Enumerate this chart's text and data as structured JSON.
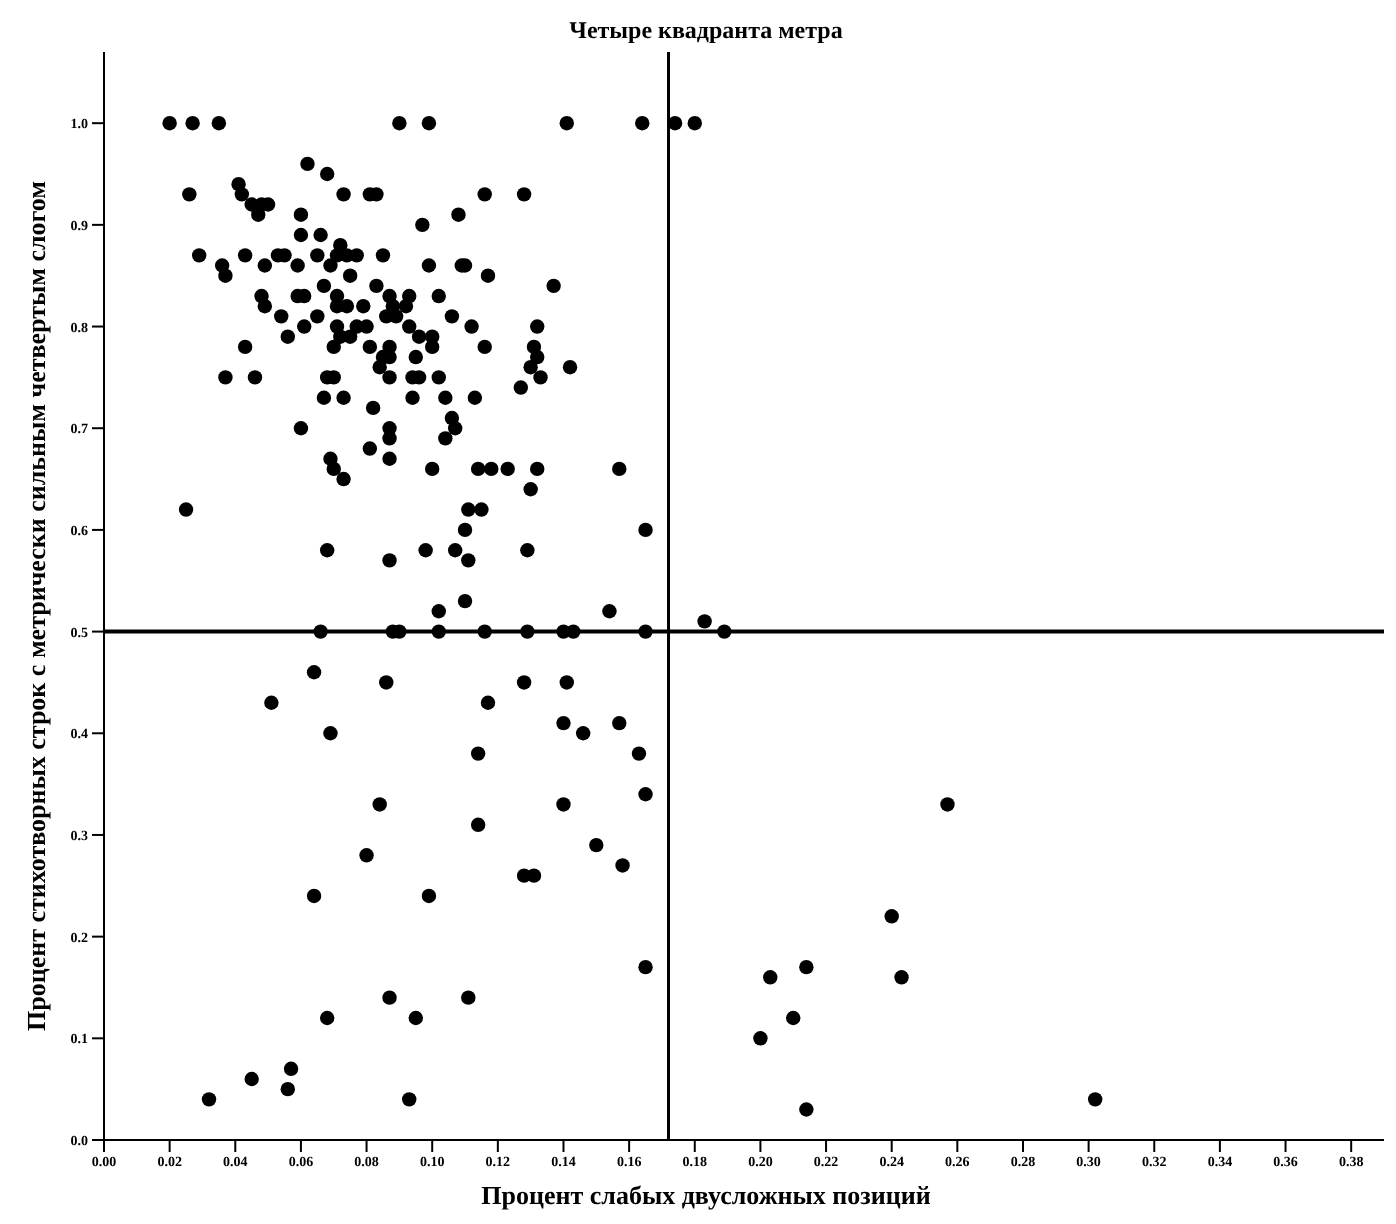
{
  "chart_data": {
    "type": "scatter",
    "title": "Четыре квадранта метра",
    "xlabel": "Процент слабых двусложных позиций",
    "ylabel": "Процент стихотворных строк с метрически сильным четвертым слогом",
    "x": [
      0.02,
      0.027,
      0.035,
      0.09,
      0.099,
      0.141,
      0.164,
      0.174,
      0.18,
      0.062,
      0.041,
      0.068,
      0.081,
      0.083,
      0.073,
      0.026,
      0.042,
      0.045,
      0.048,
      0.05,
      0.047,
      0.06,
      0.066,
      0.06,
      0.097,
      0.108,
      0.116,
      0.128,
      0.029,
      0.036,
      0.037,
      0.043,
      0.049,
      0.053,
      0.055,
      0.059,
      0.065,
      0.071,
      0.072,
      0.074,
      0.077,
      0.069,
      0.075,
      0.085,
      0.099,
      0.109,
      0.11,
      0.117,
      0.137,
      0.048,
      0.049,
      0.054,
      0.059,
      0.061,
      0.067,
      0.065,
      0.071,
      0.071,
      0.074,
      0.056,
      0.061,
      0.071,
      0.072,
      0.07,
      0.075,
      0.077,
      0.08,
      0.079,
      0.083,
      0.087,
      0.088,
      0.089,
      0.093,
      0.092,
      0.086,
      0.093,
      0.096,
      0.1,
      0.1,
      0.102,
      0.106,
      0.112,
      0.116,
      0.132,
      0.131,
      0.132,
      0.13,
      0.133,
      0.142,
      0.043,
      0.081,
      0.085,
      0.087,
      0.087,
      0.084,
      0.095,
      0.096,
      0.094,
      0.087,
      0.102,
      0.068,
      0.07,
      0.037,
      0.046,
      0.067,
      0.073,
      0.082,
      0.094,
      0.104,
      0.106,
      0.113,
      0.127,
      0.06,
      0.081,
      0.087,
      0.087,
      0.087,
      0.069,
      0.07,
      0.073,
      0.1,
      0.104,
      0.107,
      0.114,
      0.118,
      0.123,
      0.132,
      0.13,
      0.115,
      0.111,
      0.11,
      0.111,
      0.107,
      0.098,
      0.087,
      0.068,
      0.129,
      0.025,
      0.157,
      0.165,
      0.102,
      0.11,
      0.154,
      0.066,
      0.088,
      0.09,
      0.102,
      0.116,
      0.129,
      0.14,
      0.143,
      0.165,
      0.183,
      0.189,
      0.064,
      0.051,
      0.086,
      0.069,
      0.117,
      0.128,
      0.141,
      0.14,
      0.146,
      0.157,
      0.163,
      0.114,
      0.084,
      0.14,
      0.165,
      0.08,
      0.114,
      0.15,
      0.158,
      0.128,
      0.131,
      0.064,
      0.099,
      0.165,
      0.087,
      0.111,
      0.068,
      0.095,
      0.057,
      0.056,
      0.045,
      0.032,
      0.093,
      0.257,
      0.24,
      0.243,
      0.203,
      0.214,
      0.21,
      0.2,
      0.214,
      0.302
    ],
    "values": [
      1.0,
      1.0,
      1.0,
      1.0,
      1.0,
      1.0,
      1.0,
      1.0,
      1.0,
      0.96,
      0.94,
      0.95,
      0.93,
      0.93,
      0.93,
      0.93,
      0.93,
      0.92,
      0.92,
      0.92,
      0.91,
      0.91,
      0.89,
      0.89,
      0.9,
      0.91,
      0.93,
      0.93,
      0.87,
      0.86,
      0.85,
      0.87,
      0.86,
      0.87,
      0.87,
      0.86,
      0.87,
      0.87,
      0.88,
      0.87,
      0.87,
      0.86,
      0.85,
      0.87,
      0.86,
      0.86,
      0.86,
      0.85,
      0.84,
      0.83,
      0.82,
      0.81,
      0.83,
      0.83,
      0.84,
      0.81,
      0.83,
      0.82,
      0.82,
      0.79,
      0.8,
      0.8,
      0.79,
      0.78,
      0.79,
      0.8,
      0.8,
      0.82,
      0.84,
      0.83,
      0.82,
      0.81,
      0.83,
      0.82,
      0.81,
      0.8,
      0.79,
      0.79,
      0.78,
      0.83,
      0.81,
      0.8,
      0.78,
      0.8,
      0.78,
      0.77,
      0.76,
      0.75,
      0.76,
      0.78,
      0.78,
      0.77,
      0.77,
      0.78,
      0.76,
      0.77,
      0.75,
      0.75,
      0.75,
      0.75,
      0.75,
      0.75,
      0.75,
      0.75,
      0.73,
      0.73,
      0.72,
      0.73,
      0.73,
      0.71,
      0.73,
      0.74,
      0.7,
      0.68,
      0.7,
      0.69,
      0.67,
      0.67,
      0.66,
      0.65,
      0.66,
      0.69,
      0.7,
      0.66,
      0.66,
      0.66,
      0.66,
      0.64,
      0.62,
      0.62,
      0.6,
      0.57,
      0.58,
      0.58,
      0.57,
      0.58,
      0.58,
      0.62,
      0.66,
      0.6,
      0.52,
      0.53,
      0.52,
      0.5,
      0.5,
      0.5,
      0.5,
      0.5,
      0.5,
      0.5,
      0.5,
      0.5,
      0.51,
      0.5,
      0.46,
      0.43,
      0.45,
      0.4,
      0.43,
      0.45,
      0.45,
      0.41,
      0.4,
      0.41,
      0.38,
      0.38,
      0.33,
      0.33,
      0.34,
      0.28,
      0.31,
      0.29,
      0.27,
      0.26,
      0.26,
      0.24,
      0.24,
      0.17,
      0.14,
      0.14,
      0.12,
      0.12,
      0.07,
      0.05,
      0.06,
      0.04,
      0.04,
      0.33,
      0.22,
      0.16,
      0.16,
      0.17,
      0.12,
      0.1,
      0.03,
      0.04
    ],
    "color": "#000000",
    "marker": "circle",
    "xlim": [
      0,
      0.39
    ],
    "ylim": [
      0,
      1.07
    ],
    "xticks": [
      {
        "value": 0,
        "label": "0.00"
      },
      {
        "value": 0.02,
        "label": "0.02"
      },
      {
        "value": 0.04,
        "label": "0.04"
      },
      {
        "value": 0.06,
        "label": "0.06"
      },
      {
        "value": 0.08,
        "label": "0.08"
      },
      {
        "value": 0.1,
        "label": "0.10"
      },
      {
        "value": 0.12,
        "label": "0.12"
      },
      {
        "value": 0.14,
        "label": "0.14"
      },
      {
        "value": 0.16,
        "label": "0.16"
      },
      {
        "value": 0.18,
        "label": "0.18"
      },
      {
        "value": 0.2,
        "label": "0.20"
      },
      {
        "value": 0.22,
        "label": "0.22"
      },
      {
        "value": 0.24,
        "label": "0.24"
      },
      {
        "value": 0.26,
        "label": "0.26"
      },
      {
        "value": 0.28,
        "label": "0.28"
      },
      {
        "value": 0.3,
        "label": "0.30"
      },
      {
        "value": 0.32,
        "label": "0.32"
      },
      {
        "value": 0.34,
        "label": "0.34"
      },
      {
        "value": 0.36,
        "label": "0.36"
      },
      {
        "value": 0.38,
        "label": "0.38"
      }
    ],
    "yticks": [
      {
        "value": 0,
        "label": "0.0"
      },
      0.1,
      0.2,
      0.3,
      0.4,
      0.5,
      0.6,
      0.7,
      0.8,
      0.9,
      {
        "value": 1,
        "label": "1.0"
      }
    ],
    "ref_lines": [
      {
        "axis": "x",
        "value": 0.172,
        "color": "#000000"
      },
      {
        "axis": "y",
        "value": 0.5,
        "color": "#000000"
      }
    ]
  }
}
